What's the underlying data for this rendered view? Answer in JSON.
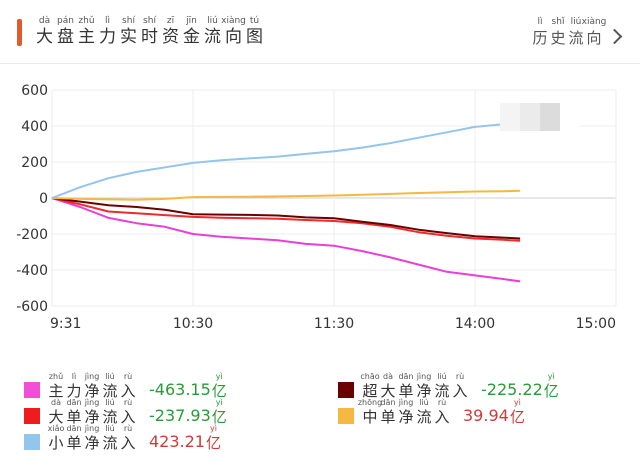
{
  "header": {
    "title_chars": [
      {
        "hz": "大",
        "py": "dà"
      },
      {
        "hz": "盘",
        "py": "pán"
      },
      {
        "hz": "主",
        "py": "zhǔ"
      },
      {
        "hz": "力",
        "py": "lì"
      },
      {
        "hz": "实",
        "py": "shí"
      },
      {
        "hz": "时",
        "py": "shí"
      },
      {
        "hz": "资",
        "py": "zī"
      },
      {
        "hz": "金",
        "py": "jīn"
      },
      {
        "hz": "流",
        "py": "liú"
      },
      {
        "hz": "向",
        "py": "xiàng"
      },
      {
        "hz": "图",
        "py": "tú"
      }
    ],
    "history_chars": [
      {
        "hz": "历",
        "py": "lì"
      },
      {
        "hz": "史",
        "py": "shǐ"
      },
      {
        "hz": "流",
        "py": "liú"
      },
      {
        "hz": "向",
        "py": "xiàng"
      }
    ],
    "accent_color": "#e2592a"
  },
  "chart_data": {
    "type": "line",
    "x_ticks": [
      "9:31",
      "10:30",
      "11:30",
      "14:00",
      "15:00"
    ],
    "y_ticks": [
      "600",
      "400",
      "200",
      "0",
      "-200",
      "-400",
      "-600"
    ],
    "ylim": [
      -600,
      600
    ],
    "grid": true,
    "x_domain": [
      0,
      1
    ],
    "x": [
      0,
      0.05,
      0.1,
      0.15,
      0.2,
      0.25,
      0.3,
      0.35,
      0.4,
      0.45,
      0.5,
      0.55,
      0.6,
      0.65,
      0.7,
      0.75,
      0.8,
      0.83
    ],
    "series": [
      {
        "id": "main",
        "color": "#e83fd8",
        "values": [
          0,
          -50,
          -110,
          -140,
          -160,
          -200,
          -215,
          -225,
          -235,
          -255,
          -265,
          -295,
          -330,
          -370,
          -410,
          -430,
          -450,
          -463.15
        ]
      },
      {
        "id": "large",
        "color": "#ee2a2a",
        "values": [
          0,
          -35,
          -75,
          -85,
          -95,
          -105,
          -110,
          -112,
          -115,
          -122,
          -128,
          -140,
          -160,
          -190,
          -210,
          -225,
          -232,
          -237.93
        ]
      },
      {
        "id": "super",
        "color": "#6b0000",
        "values": [
          0,
          -20,
          -40,
          -50,
          -65,
          -90,
          -92,
          -94,
          -97,
          -108,
          -112,
          -132,
          -150,
          -176,
          -195,
          -212,
          -220,
          -225.22
        ]
      },
      {
        "id": "medium",
        "color": "#f5b942",
        "values": [
          0,
          -5,
          -8,
          -10,
          -5,
          5,
          6,
          7,
          9,
          11,
          14,
          18,
          23,
          28,
          32,
          36,
          38,
          39.94
        ]
      },
      {
        "id": "small",
        "color": "#94c5ec",
        "values": [
          0,
          60,
          110,
          145,
          170,
          195,
          210,
          220,
          230,
          245,
          260,
          280,
          305,
          335,
          365,
          395,
          410,
          423.21
        ]
      }
    ]
  },
  "legend": {
    "items": [
      {
        "id": "main",
        "color": "#f04fd8",
        "chars": [
          {
            "hz": "主",
            "py": "zhǔ"
          },
          {
            "hz": "力",
            "py": "lì"
          },
          {
            "hz": "净",
            "py": "jìng"
          },
          {
            "hz": "流",
            "py": "liú"
          },
          {
            "hz": "入",
            "py": "rù"
          }
        ],
        "value": "-463.15",
        "value_color": "#2a9a35"
      },
      {
        "id": "super",
        "color": "#6b0000",
        "chars": [
          {
            "hz": "超",
            "py": "chāo"
          },
          {
            "hz": "大",
            "py": "dà"
          },
          {
            "hz": "单",
            "py": "dān"
          },
          {
            "hz": "净",
            "py": "jìng"
          },
          {
            "hz": "流",
            "py": "liú"
          },
          {
            "hz": "入",
            "py": "rù"
          }
        ],
        "value": "-225.22",
        "value_color": "#2a9a35"
      },
      {
        "id": "large",
        "color": "#ee1c1c",
        "chars": [
          {
            "hz": "大",
            "py": "dà"
          },
          {
            "hz": "单",
            "py": "dān"
          },
          {
            "hz": "净",
            "py": "jìng"
          },
          {
            "hz": "流",
            "py": "liú"
          },
          {
            "hz": "入",
            "py": "rù"
          }
        ],
        "value": "-237.93",
        "value_color": "#2a9a35"
      },
      {
        "id": "medium",
        "color": "#f5b942",
        "chars": [
          {
            "hz": "中",
            "py": "zhōng"
          },
          {
            "hz": "单",
            "py": "dān"
          },
          {
            "hz": "净",
            "py": "jìng"
          },
          {
            "hz": "流",
            "py": "liú"
          },
          {
            "hz": "入",
            "py": "rù"
          }
        ],
        "value": "39.94",
        "value_color": "#d03a3a"
      },
      {
        "id": "small",
        "color": "#94c5ec",
        "chars": [
          {
            "hz": "小",
            "py": "xiǎo"
          },
          {
            "hz": "单",
            "py": "dān"
          },
          {
            "hz": "净",
            "py": "jìng"
          },
          {
            "hz": "流",
            "py": "liú"
          },
          {
            "hz": "入",
            "py": "rù"
          }
        ],
        "value": "423.21",
        "value_color": "#d03a3a"
      }
    ],
    "unit": {
      "hz": "亿",
      "py": "yì"
    }
  }
}
